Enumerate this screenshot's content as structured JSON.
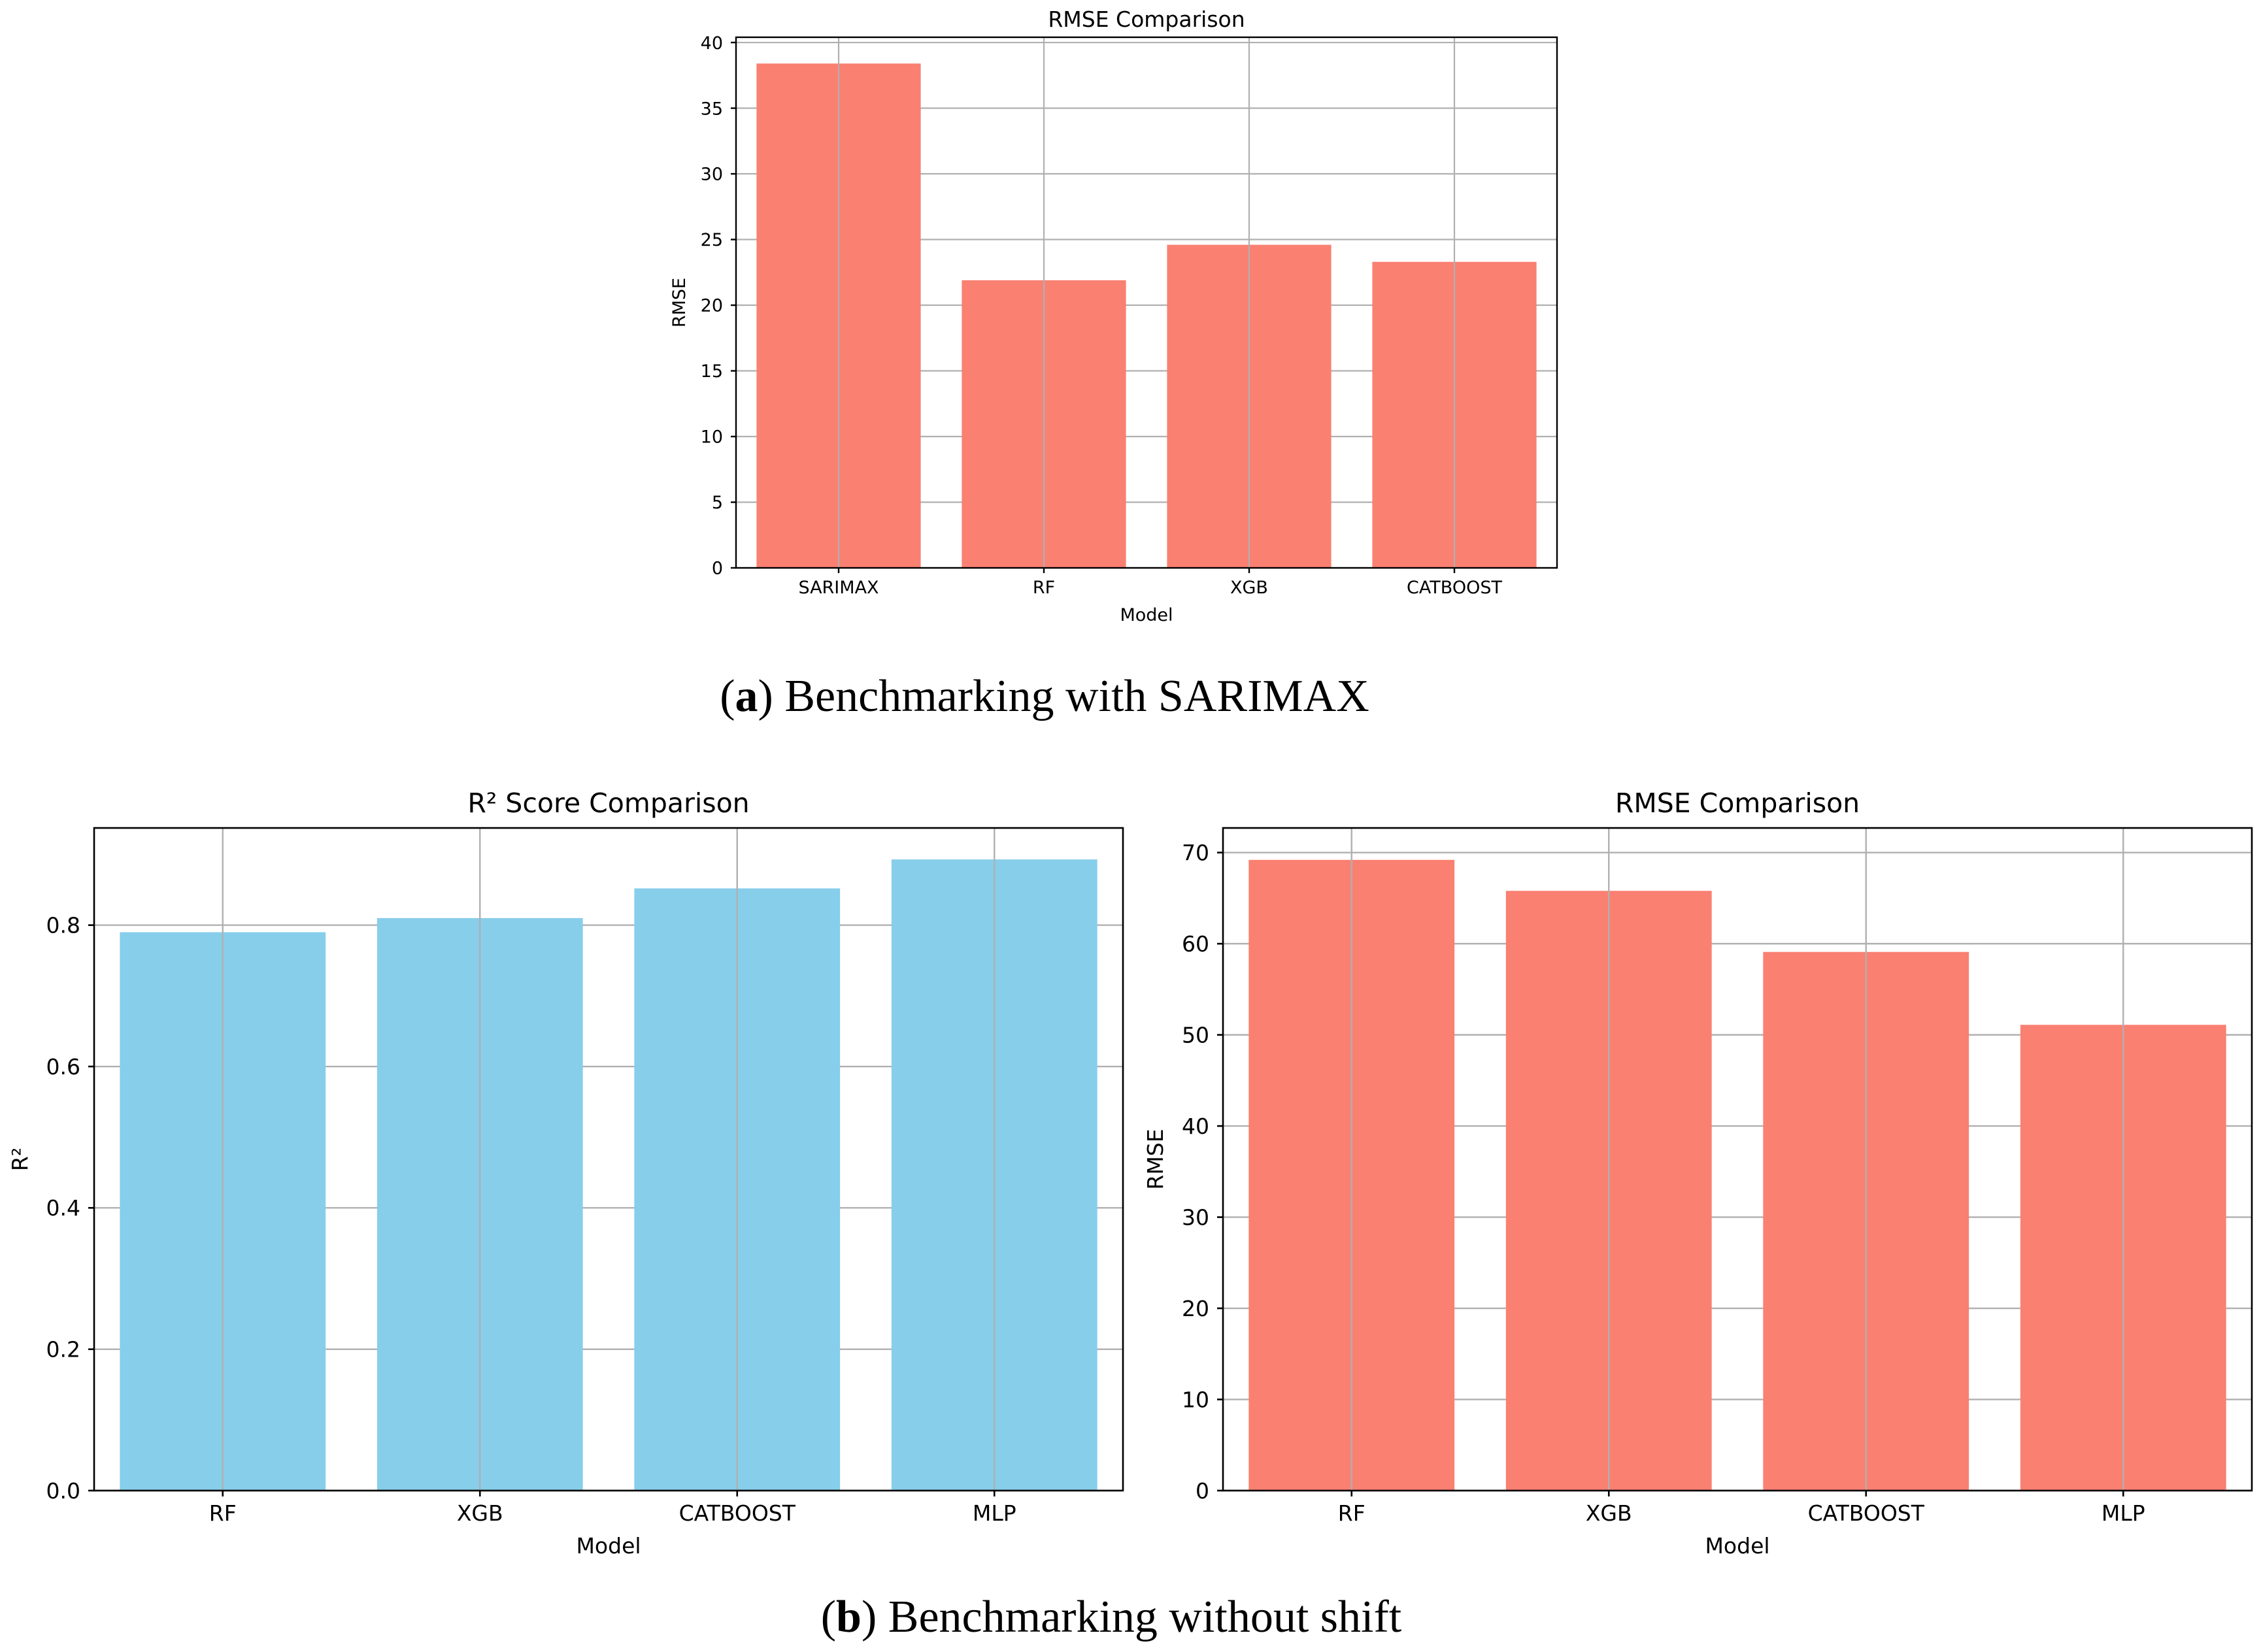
{
  "colors": {
    "salmon": "#FA8072",
    "skyblue": "#87CEEB",
    "grid": "#b0b0b0",
    "axis": "#000000"
  },
  "captions": {
    "a": {
      "label": "a",
      "text": "Benchmarking with SARIMAX"
    },
    "b": {
      "label": "b",
      "text": "Benchmarking without shift"
    }
  },
  "chart_data": [
    {
      "id": "rmse_sarimax",
      "type": "bar",
      "title": "RMSE Comparison",
      "xlabel": "Model",
      "ylabel": "RMSE",
      "categories": [
        "SARIMAX",
        "RF",
        "XGB",
        "CATBOOST"
      ],
      "values": [
        38.4,
        21.9,
        24.6,
        23.3
      ],
      "ylim": [
        0,
        40.4
      ],
      "yticks": [
        0,
        5,
        10,
        15,
        20,
        25,
        30,
        35,
        40
      ],
      "grid": true,
      "color": "#FA8072"
    },
    {
      "id": "r2_no_shift",
      "type": "bar",
      "title": "R² Score Comparison",
      "xlabel": "Model",
      "ylabel": "R²",
      "categories": [
        "RF",
        "XGB",
        "CATBOOST",
        "MLP"
      ],
      "values": [
        0.79,
        0.81,
        0.852,
        0.893
      ],
      "ylim": [
        0,
        0.9375
      ],
      "yticks": [
        0.0,
        0.2,
        0.4,
        0.6,
        0.8
      ],
      "ytick_labels": [
        "0.0",
        "0.2",
        "0.4",
        "0.6",
        "0.8"
      ],
      "grid": true,
      "color": "#87CEEB"
    },
    {
      "id": "rmse_no_shift",
      "type": "bar",
      "title": "RMSE Comparison",
      "xlabel": "Model",
      "ylabel": "RMSE",
      "categories": [
        "RF",
        "XGB",
        "CATBOOST",
        "MLP"
      ],
      "values": [
        69.2,
        65.8,
        59.1,
        51.1
      ],
      "ylim": [
        0,
        72.7
      ],
      "yticks": [
        0,
        10,
        20,
        30,
        40,
        50,
        60,
        70
      ],
      "grid": true,
      "color": "#FA8072"
    }
  ]
}
